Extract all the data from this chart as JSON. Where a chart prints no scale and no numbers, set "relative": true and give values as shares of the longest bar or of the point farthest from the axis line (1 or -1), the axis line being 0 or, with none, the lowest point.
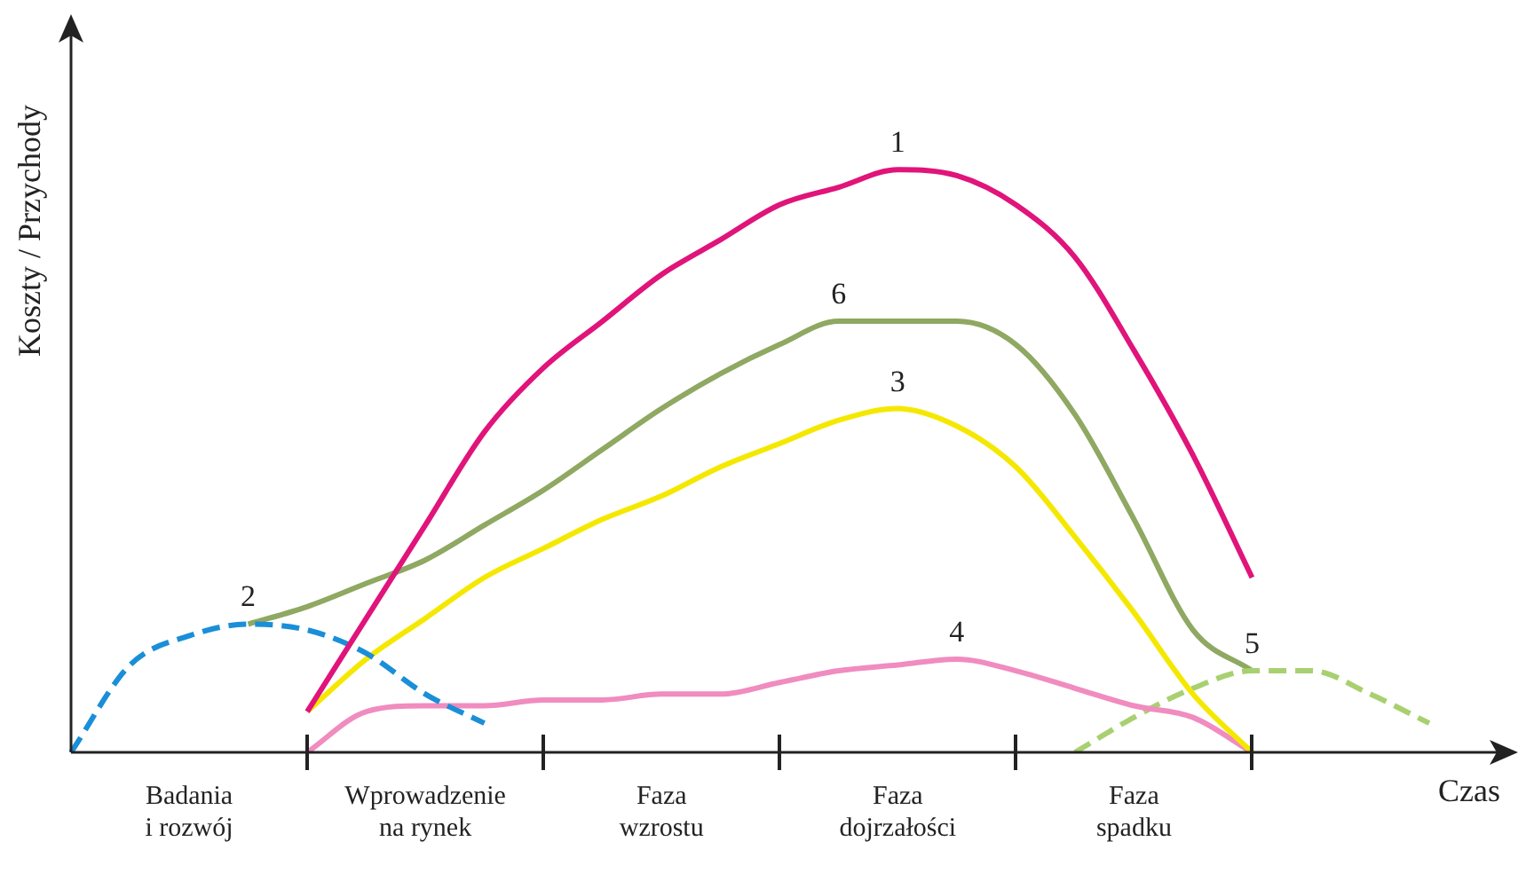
{
  "chart_data": {
    "type": "line",
    "relative": true,
    "xlabel": "Czas",
    "ylabel": "Koszty / Przychody",
    "legend": false,
    "grid": false,
    "marker": "none",
    "categories": [
      null,
      null,
      "Badania\ni rozwój",
      null,
      null,
      null,
      "Wprowadzenie\nna rynek",
      null,
      null,
      null,
      "Faza\nwzrostu",
      null,
      null,
      null,
      "Faza\ndojrzałości",
      null,
      null,
      null,
      "Faza\nspadku",
      null,
      null,
      null,
      null,
      null
    ],
    "series": [
      {
        "name": "1",
        "color": "#e0147a",
        "line_style": "solid",
        "values": [
          null,
          null,
          null,
          null,
          0.07,
          0.23,
          0.39,
          0.55,
          0.66,
          0.74,
          0.82,
          0.88,
          0.94,
          0.97,
          1.0,
          0.99,
          0.94,
          0.85,
          0.69,
          0.51,
          0.3,
          null,
          null,
          null
        ]
      },
      {
        "name": "2",
        "color": "#1a8fd8",
        "line_style": "dashed",
        "values": [
          0,
          0.15,
          0.2,
          0.22,
          0.21,
          0.17,
          0.1,
          0.05,
          null,
          null,
          null,
          null,
          null,
          null,
          null,
          null,
          null,
          null,
          null,
          null,
          null,
          null,
          null,
          null
        ]
      },
      {
        "name": "3",
        "color": "#f5e800",
        "line_style": "solid",
        "values": [
          null,
          null,
          null,
          null,
          0.07,
          0.16,
          0.23,
          0.3,
          0.35,
          0.4,
          0.44,
          0.49,
          0.53,
          0.57,
          0.59,
          0.56,
          0.49,
          0.37,
          0.24,
          0.1,
          0,
          null,
          null,
          null
        ]
      },
      {
        "name": "4",
        "color": "#f08cbf",
        "line_style": "solid",
        "values": [
          null,
          null,
          null,
          null,
          0,
          0.07,
          0.08,
          0.08,
          0.09,
          0.09,
          0.1,
          0.1,
          0.12,
          0.14,
          0.15,
          0.16,
          0.14,
          0.11,
          0.08,
          0.06,
          0,
          null,
          null,
          null
        ]
      },
      {
        "name": "5",
        "color": "#a8d070",
        "line_style": "dashed",
        "values": [
          null,
          null,
          null,
          null,
          null,
          null,
          null,
          null,
          null,
          null,
          null,
          null,
          null,
          null,
          null,
          null,
          null,
          0,
          0.06,
          0.11,
          0.14,
          0.14,
          0.1,
          0.05
        ]
      },
      {
        "name": "6",
        "color": "#8fa862",
        "line_style": "solid",
        "values": [
          null,
          null,
          null,
          0.22,
          0.25,
          0.29,
          0.33,
          0.39,
          0.45,
          0.52,
          0.59,
          0.65,
          0.7,
          0.74,
          0.74,
          0.74,
          0.7,
          0.58,
          0.4,
          0.21,
          0.14,
          null,
          null,
          null
        ]
      }
    ]
  }
}
